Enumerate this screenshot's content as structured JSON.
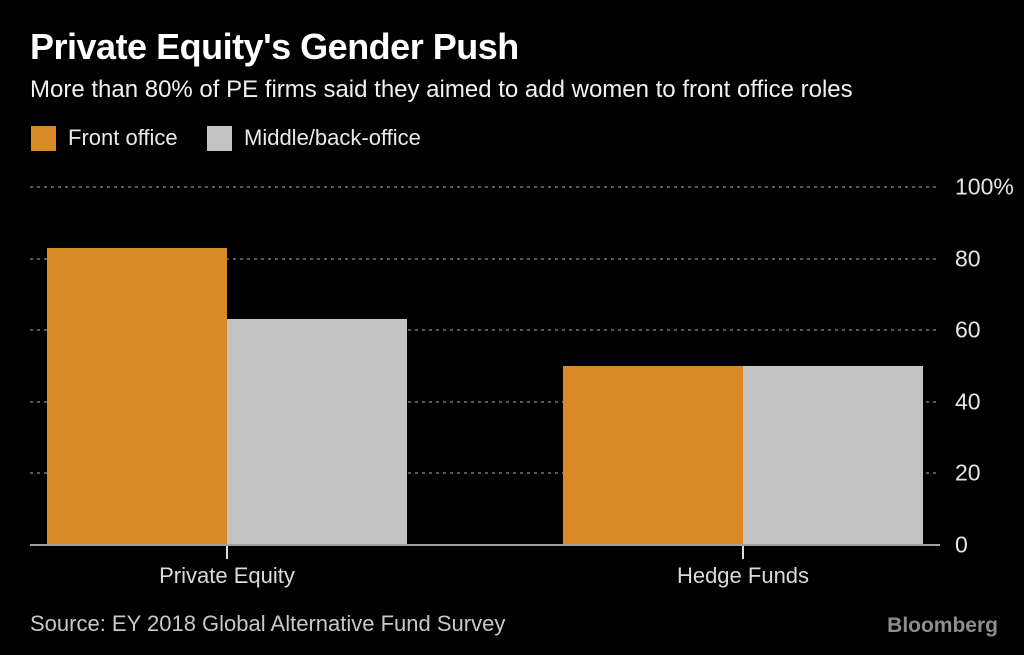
{
  "header": {
    "title": "Private Equity's Gender Push",
    "subtitle": "More than 80% of PE firms said they aimed to add women to front office roles"
  },
  "legend": [
    {
      "label": "Front office",
      "color": "#d98a26"
    },
    {
      "label": "Middle/back-office",
      "color": "#c2c2c2"
    }
  ],
  "chart_data": {
    "type": "bar",
    "categories": [
      "Private Equity",
      "Hedge Funds"
    ],
    "series": [
      {
        "name": "Front office",
        "color": "#d98a26",
        "values": [
          83,
          50
        ]
      },
      {
        "name": "Middle/back-office",
        "color": "#c2c2c2",
        "values": [
          63,
          50
        ]
      }
    ],
    "title": "Private Equity's Gender Push",
    "xlabel": "",
    "ylabel": "",
    "ylim": [
      0,
      100
    ],
    "yticks": [
      0,
      20,
      40,
      60,
      80,
      100
    ],
    "ytick_labels": [
      "0",
      "20",
      "40",
      "60",
      "80",
      "100%"
    ],
    "grid": "horizontal-dotted",
    "axis_side": "right",
    "legend_position": "top-left"
  },
  "footer": {
    "source": "Source: EY 2018 Global Alternative Fund Survey",
    "logo": "Bloomberg"
  },
  "colors": {
    "background": "#000000",
    "front_office": "#d98a26",
    "middle_back_office": "#c2c2c2",
    "gridline": "#585858",
    "axis_line": "#a0a0a0",
    "tick": "#dddddd",
    "title_text": "#ffffff",
    "subtitle_text": "#f1f1f1",
    "legend_text": "#e9e9e9",
    "axis_label": "#e6e6e6",
    "category_label": "#dadada",
    "source_text": "#c8c8c8",
    "logo_text": "#8d8d8d"
  }
}
